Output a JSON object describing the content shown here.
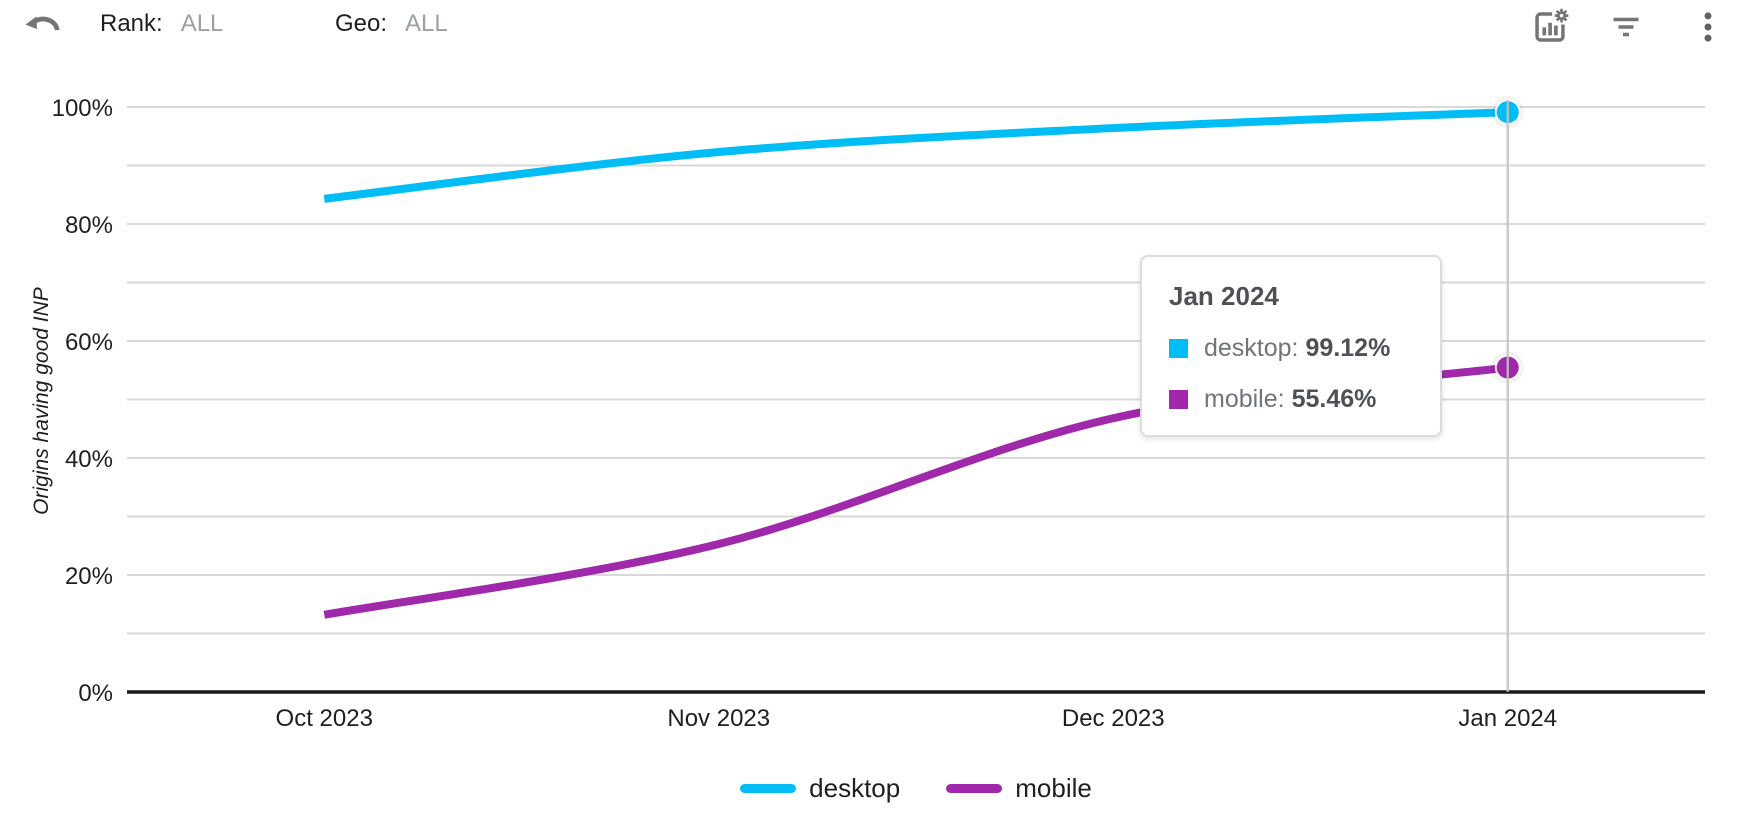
{
  "header": {
    "filters": [
      {
        "label": "Rank:",
        "value": "ALL"
      },
      {
        "label": "Geo:",
        "value": "ALL"
      }
    ],
    "icons": [
      "undo-icon",
      "chart-settings-icon",
      "filter-icon",
      "more-vert-icon"
    ],
    "icon_color": "#757575"
  },
  "chart_data": {
    "type": "line",
    "title": "",
    "xlabel": "",
    "ylabel": "Origins having good INP",
    "categories": [
      "Oct 2023",
      "Nov 2023",
      "Dec 2023",
      "Jan 2024"
    ],
    "series": [
      {
        "name": "desktop",
        "color": "#00bef5",
        "values": [
          84.3,
          92.3,
          96.4,
          99.12
        ]
      },
      {
        "name": "mobile",
        "color": "#a028aa",
        "values": [
          13.2,
          25.3,
          46.8,
          55.46
        ]
      }
    ],
    "ylim": [
      0,
      100
    ],
    "ytick_step": 10,
    "ytick_label_step": 20,
    "ytick_suffix": "%",
    "grid": true,
    "gridline_color": "#d9d9d9",
    "axis_color": "#1a1a1a",
    "crosshair_color": "#c2c2c2",
    "highlight_index": 3,
    "legend_position": "bottom"
  },
  "tooltip": {
    "title": "Jan 2024",
    "rows": [
      {
        "series": "desktop",
        "color": "#00bef5",
        "label": "desktop:",
        "value": "99.12%"
      },
      {
        "series": "mobile",
        "color": "#a028aa",
        "label": "mobile:",
        "value": "55.46%"
      }
    ]
  },
  "legend": [
    {
      "label": "desktop",
      "color": "#00bef5"
    },
    {
      "label": "mobile",
      "color": "#a028aa"
    }
  ]
}
